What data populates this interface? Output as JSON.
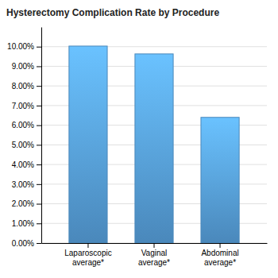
{
  "chart_data": {
    "type": "bar",
    "title": "Hysterectomy Complication Rate by Procedure",
    "categories": [
      "Laparoscopic\naverage*",
      "Vaginal\naverage*",
      "Abdominal\naverage*"
    ],
    "values": [
      0.1003,
      0.0963,
      0.064
    ],
    "color": "#4a88bb",
    "ylim": [
      0,
      0.11
    ],
    "yticks": [
      {
        "value": 0.0,
        "label": "0.00%"
      },
      {
        "value": 0.01,
        "label": "1.00%"
      },
      {
        "value": 0.02,
        "label": "2.00%"
      },
      {
        "value": 0.03,
        "label": "3.00%"
      },
      {
        "value": 0.04,
        "label": "4.00%"
      },
      {
        "value": 0.05,
        "label": "5.00%"
      },
      {
        "value": 0.06,
        "label": "6.00%"
      },
      {
        "value": 0.07,
        "label": "7.00%"
      },
      {
        "value": 0.08,
        "label": "8.00%"
      },
      {
        "value": 0.09,
        "label": "9.00%"
      },
      {
        "value": 0.1,
        "label": "10.00%"
      }
    ],
    "grid": true
  }
}
